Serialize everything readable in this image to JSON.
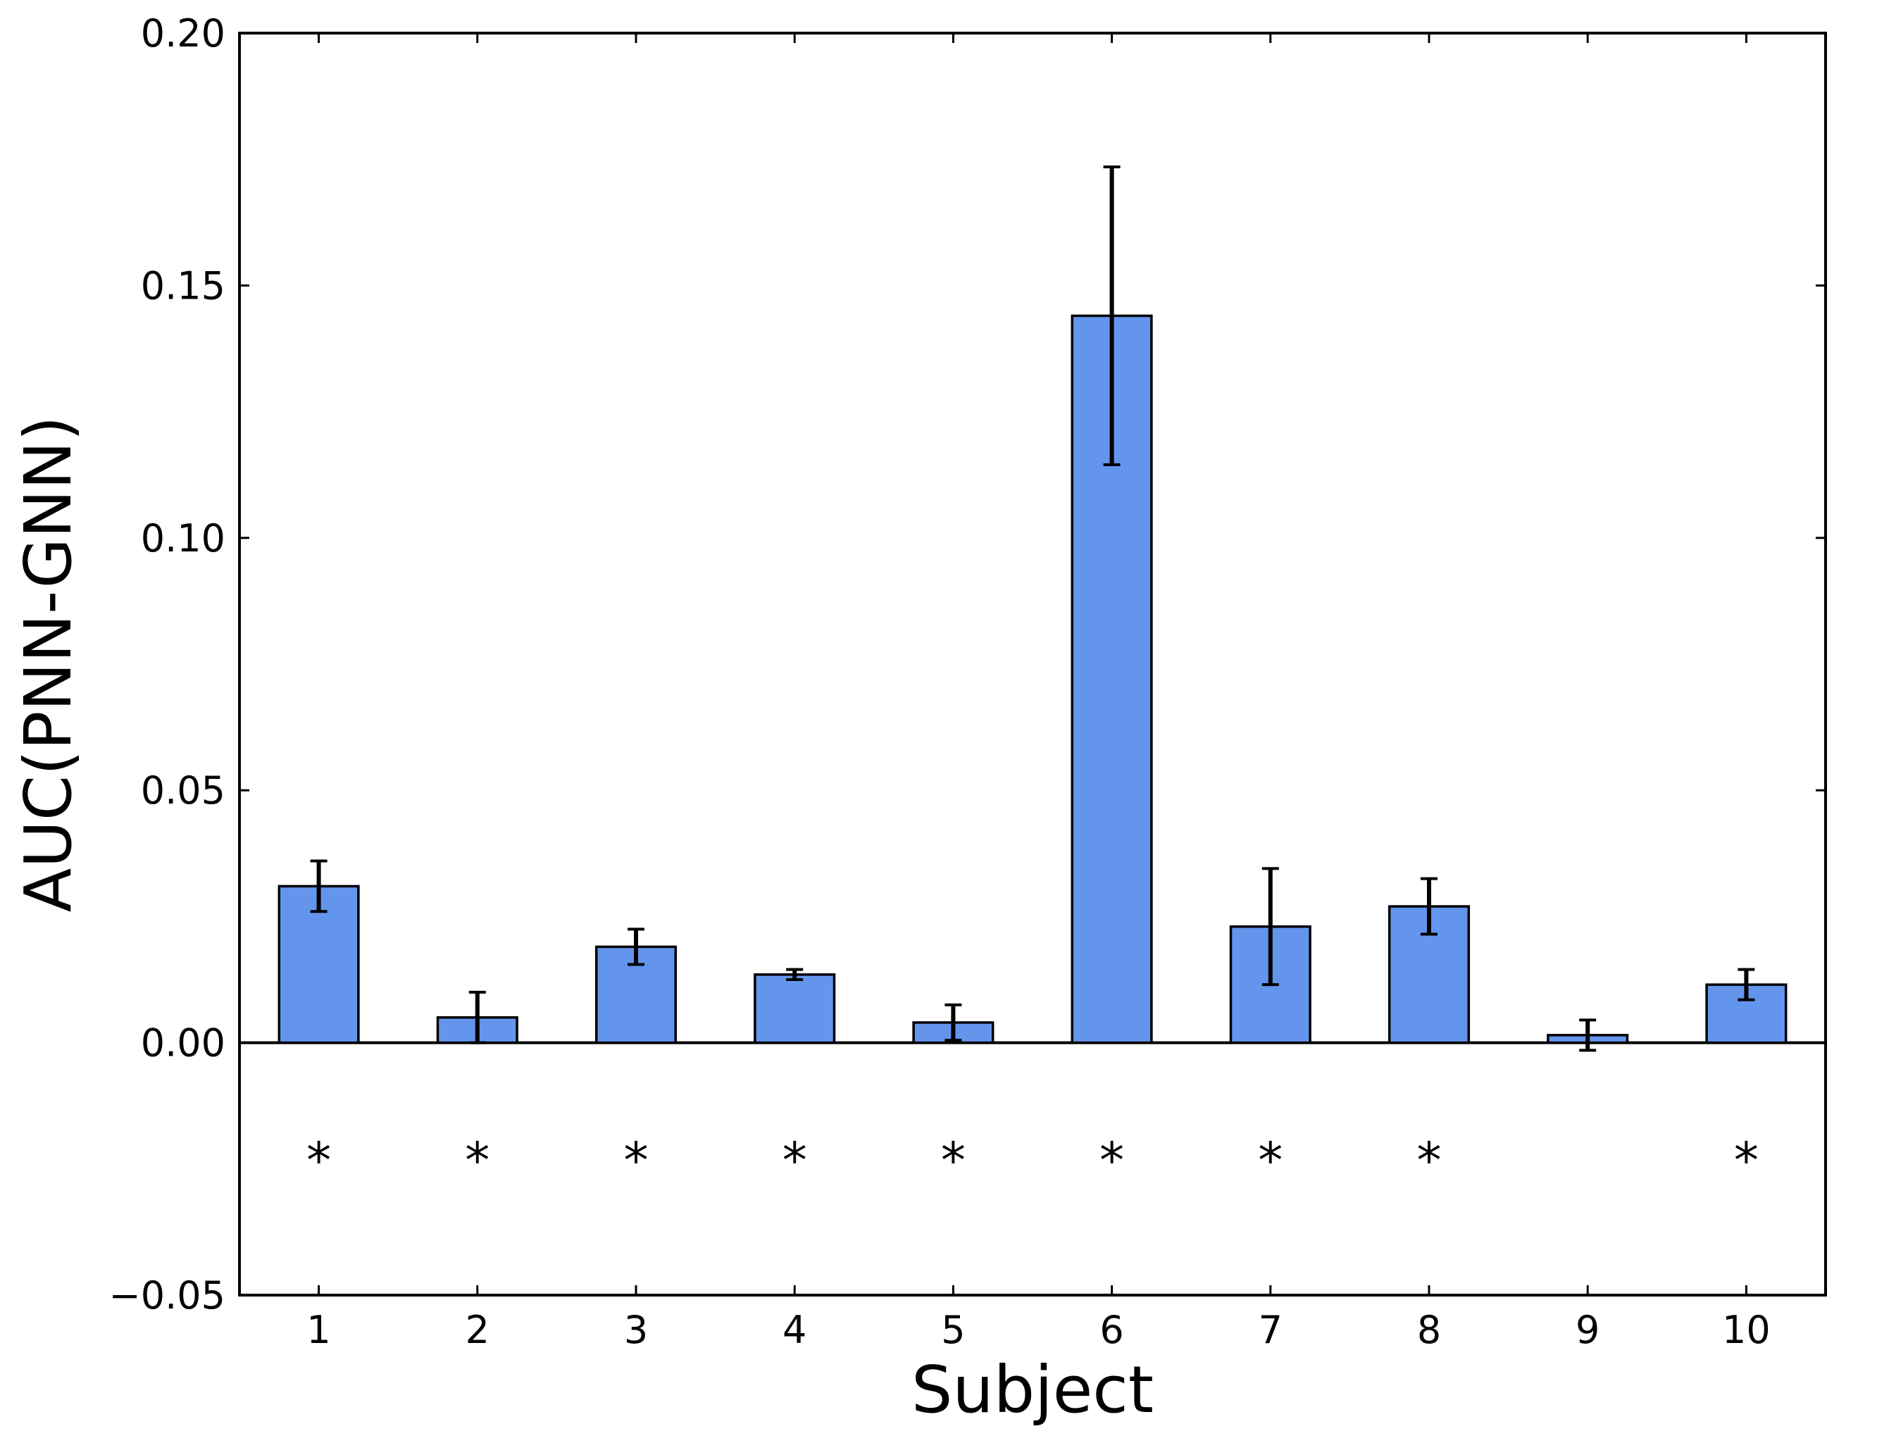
{
  "chart_data": {
    "type": "bar",
    "title": "",
    "xlabel": "Subject",
    "ylabel": "AUC(PNN-GNN)",
    "categories": [
      "1",
      "2",
      "3",
      "4",
      "5",
      "6",
      "7",
      "8",
      "9",
      "10"
    ],
    "values": [
      0.031,
      0.005,
      0.019,
      0.0135,
      0.004,
      0.144,
      0.023,
      0.027,
      0.0015,
      0.0115
    ],
    "errors": [
      0.005,
      0.005,
      0.0035,
      0.001,
      0.0035,
      0.0295,
      0.0115,
      0.0055,
      0.003,
      0.003
    ],
    "significance": [
      "*",
      "*",
      "*",
      "*",
      "*",
      "*",
      "*",
      "*",
      "",
      "*"
    ],
    "significance_y": -0.02,
    "ylim": [
      -0.05,
      0.2
    ],
    "yticks": [
      -0.05,
      0.0,
      0.05,
      0.1,
      0.15,
      0.2
    ],
    "ytick_labels": [
      "−0.05",
      "0.00",
      "0.05",
      "0.10",
      "0.15",
      "0.20"
    ],
    "xlim": [
      0.5,
      10.5
    ],
    "bar_width": 0.5,
    "grid": false,
    "colors": {
      "bar": "#6495ed",
      "edge": "#000000",
      "error": "#000000"
    }
  }
}
